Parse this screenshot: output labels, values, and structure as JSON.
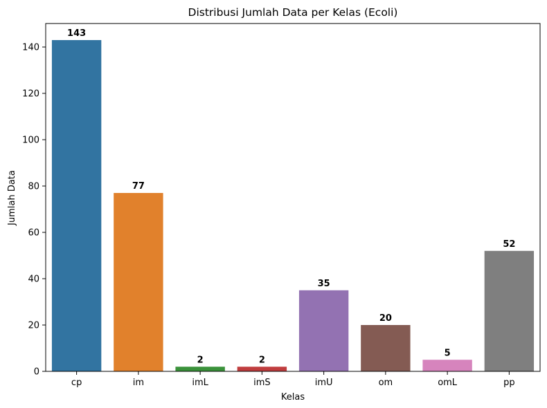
{
  "chart_data": {
    "type": "bar",
    "title": "Distribusi Jumlah Data per Kelas (Ecoli)",
    "xlabel": "Kelas",
    "ylabel": "Jumlah Data",
    "categories": [
      "cp",
      "im",
      "imL",
      "imS",
      "imU",
      "om",
      "omL",
      "pp"
    ],
    "values": [
      143,
      77,
      2,
      2,
      35,
      20,
      5,
      52
    ],
    "colors": [
      "#3274a1",
      "#e1812c",
      "#3a923a",
      "#c03d3e",
      "#9372b2",
      "#845b53",
      "#d684bd",
      "#7f7f7f"
    ],
    "yticks": [
      0,
      20,
      40,
      60,
      80,
      100,
      120,
      140
    ],
    "ylim": [
      0,
      150.15
    ],
    "grid": false,
    "data_labels": true
  }
}
